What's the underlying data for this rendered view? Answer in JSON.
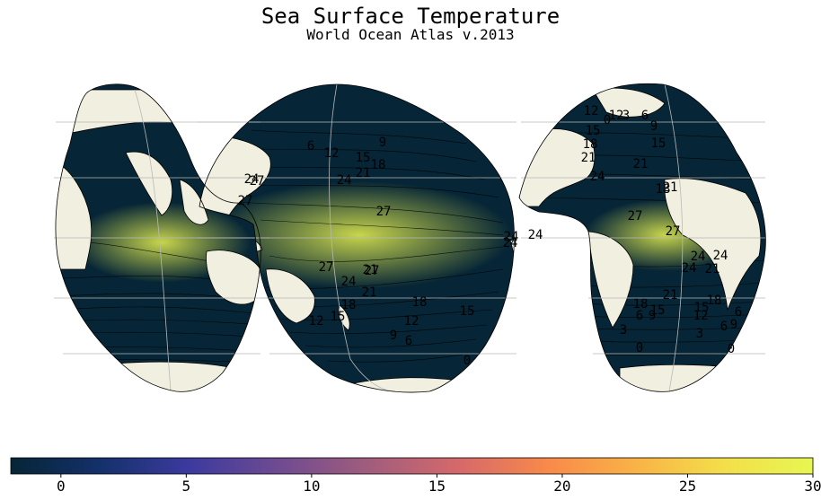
{
  "title": "Sea Surface Temperature",
  "subtitle": "World Ocean Atlas v.2013",
  "colors": {
    "land": "#f1efdf",
    "coast": "#000000",
    "grid": "#b9b9b9",
    "cmap": [
      "#062536",
      "#14306a",
      "#3b3a9e",
      "#6d4a92",
      "#9e5c7e",
      "#d6696a",
      "#f88a4a",
      "#f9b346",
      "#f3df4a",
      "#e7f651"
    ]
  },
  "chart_data": {
    "type": "heatmap",
    "projection": "interrupted goode homolosine",
    "variable_range": [
      -2,
      30
    ],
    "contour_levels": [
      0,
      3,
      6,
      9,
      12,
      15,
      18,
      21,
      24,
      27
    ],
    "colorbar": {
      "orientation": "horizontal",
      "placement": "bottom",
      "ticks": [
        "0",
        "5",
        "10",
        "15",
        "20",
        "25",
        "30"
      ],
      "tick_values": [
        0,
        5,
        10,
        15,
        20,
        25,
        30
      ]
    },
    "contour_labels": [
      {
        "text": "6"
      },
      {
        "text": "9"
      },
      {
        "text": "12"
      },
      {
        "text": "15"
      },
      {
        "text": "18"
      },
      {
        "text": "21"
      },
      {
        "text": "24"
      },
      {
        "text": "27"
      },
      {
        "text": "27"
      },
      {
        "text": "27"
      },
      {
        "text": "24"
      },
      {
        "text": "24"
      },
      {
        "text": "24"
      },
      {
        "text": "24"
      },
      {
        "text": "21"
      },
      {
        "text": "18"
      },
      {
        "text": "15"
      },
      {
        "text": "12"
      },
      {
        "text": "9"
      },
      {
        "text": "6"
      },
      {
        "text": "0"
      },
      {
        "text": "12"
      },
      {
        "text": "15"
      },
      {
        "text": "18"
      },
      {
        "text": "27"
      },
      {
        "text": "21"
      },
      {
        "text": "27"
      },
      {
        "text": "24"
      },
      {
        "text": "21"
      },
      {
        "text": "18"
      },
      {
        "text": "15"
      },
      {
        "text": "9"
      },
      {
        "text": "6"
      },
      {
        "text": "3"
      },
      {
        "text": "0"
      },
      {
        "text": "12"
      },
      {
        "text": "21"
      },
      {
        "text": "27"
      },
      {
        "text": "24"
      },
      {
        "text": "21"
      },
      {
        "text": "18"
      },
      {
        "text": "15"
      },
      {
        "text": "12"
      },
      {
        "text": "6"
      },
      {
        "text": "9"
      },
      {
        "text": "3"
      },
      {
        "text": "0"
      },
      {
        "text": "15"
      },
      {
        "text": "18"
      },
      {
        "text": "21"
      },
      {
        "text": "24"
      },
      {
        "text": "27"
      },
      {
        "text": "24"
      },
      {
        "text": "24"
      },
      {
        "text": "21"
      },
      {
        "text": "18"
      },
      {
        "text": "15"
      },
      {
        "text": "12"
      },
      {
        "text": "6"
      },
      {
        "text": "9"
      },
      {
        "text": "3"
      },
      {
        "text": "0"
      },
      {
        "text": "6"
      }
    ]
  }
}
